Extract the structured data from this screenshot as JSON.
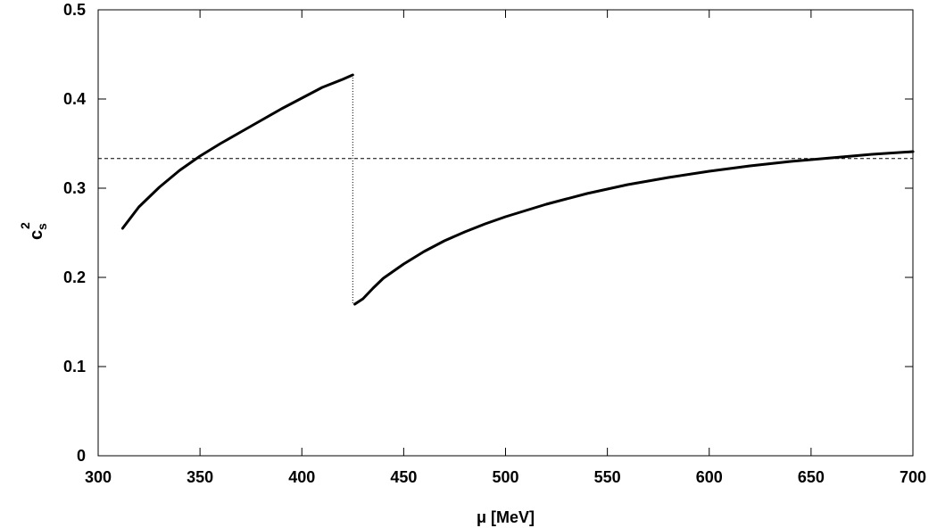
{
  "chart_data": {
    "type": "line",
    "title": "",
    "xlabel": "μ [MeV]",
    "ylabel": {
      "base": "c",
      "subscript": "s",
      "superscript": "2"
    },
    "xlim": [
      300,
      700
    ],
    "ylim": [
      0,
      0.5
    ],
    "xticks": [
      300,
      350,
      400,
      450,
      500,
      550,
      600,
      650,
      700
    ],
    "yticks": [
      0,
      0.1,
      0.2,
      0.3,
      0.4,
      0.5
    ],
    "ytick_labels": [
      "0",
      "0.1",
      "0.2",
      "0.3",
      "0.4",
      "0.5"
    ],
    "grid": false,
    "legend": "none",
    "series": [
      {
        "style": "solid",
        "segments": [
          {
            "x": [
              312,
              320,
              330,
              340,
              350,
              360,
              370,
              380,
              390,
              400,
              410,
              420,
              425
            ],
            "y": [
              0.255,
              0.279,
              0.301,
              0.32,
              0.336,
              0.35,
              0.363,
              0.376,
              0.389,
              0.401,
              0.413,
              0.422,
              0.427
            ]
          },
          {
            "x": [
              426,
              430,
              435,
              440,
              450,
              460,
              470,
              480,
              490,
              500,
              520,
              540,
              560,
              580,
              600,
              620,
              640,
              660,
              680,
              700
            ],
            "y": [
              0.17,
              0.176,
              0.188,
              0.199,
              0.215,
              0.229,
              0.241,
              0.251,
              0.26,
              0.268,
              0.282,
              0.294,
              0.304,
              0.312,
              0.319,
              0.325,
              0.33,
              0.334,
              0.338,
              0.341
            ]
          }
        ]
      }
    ],
    "reference_lines": [
      {
        "kind": "horizontal",
        "y": 0.3333,
        "style": "dashed"
      },
      {
        "kind": "vertical",
        "x": 425,
        "y_range": [
          0.17,
          0.427
        ],
        "style": "dotted"
      }
    ],
    "colors": {
      "line": "#000000",
      "axes": "#000000"
    }
  }
}
